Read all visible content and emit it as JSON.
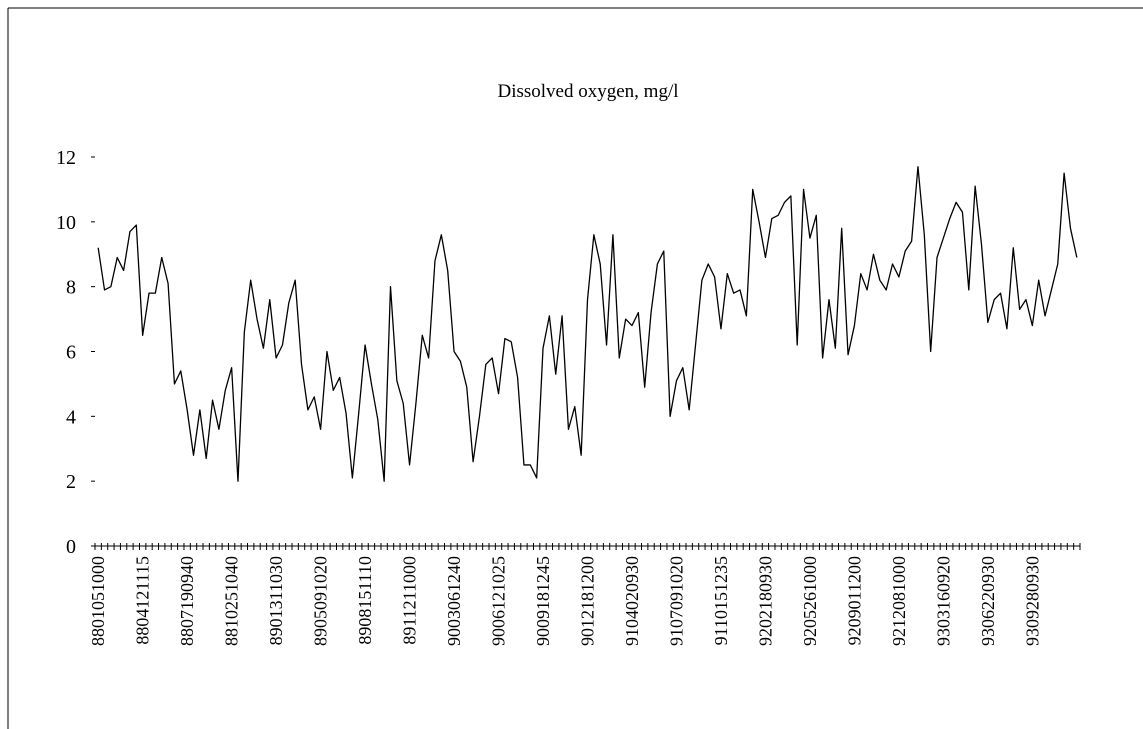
{
  "chart_data": {
    "type": "line",
    "title": "Dissolved oxygen, mg/l",
    "categories": [
      "8801051000",
      null,
      null,
      null,
      null,
      null,
      null,
      "8804121115",
      null,
      null,
      null,
      null,
      null,
      null,
      "8807190940",
      null,
      null,
      null,
      null,
      null,
      null,
      "8810251040",
      null,
      null,
      null,
      null,
      null,
      null,
      "8901311030",
      null,
      null,
      null,
      null,
      null,
      null,
      "8905091020",
      null,
      null,
      null,
      null,
      null,
      null,
      "8908151110",
      null,
      null,
      null,
      null,
      null,
      null,
      "8911211000",
      null,
      null,
      null,
      null,
      null,
      null,
      "9003061240",
      null,
      null,
      null,
      null,
      null,
      null,
      "9006121025",
      null,
      null,
      null,
      null,
      null,
      null,
      "9009181245",
      null,
      null,
      null,
      null,
      null,
      null,
      "9012181200",
      null,
      null,
      null,
      null,
      null,
      null,
      "9104020930",
      null,
      null,
      null,
      null,
      null,
      null,
      "9107091020",
      null,
      null,
      null,
      null,
      null,
      null,
      "9110151235",
      null,
      null,
      null,
      null,
      null,
      null,
      "9202180930",
      null,
      null,
      null,
      null,
      null,
      null,
      "9205261000",
      null,
      null,
      null,
      null,
      null,
      null,
      "9209011200",
      null,
      null,
      null,
      null,
      null,
      null,
      "9212081000",
      null,
      null,
      null,
      null,
      null,
      null,
      "9303160920",
      null,
      null,
      null,
      null,
      null,
      null,
      "9306220930",
      null,
      null,
      null,
      null,
      null,
      null,
      "9309280930",
      null,
      null,
      null,
      null,
      null,
      null,
      null
    ],
    "values": [
      9.2,
      7.9,
      8.0,
      8.9,
      8.5,
      9.7,
      9.9,
      6.5,
      7.8,
      7.8,
      8.9,
      8.1,
      5.0,
      5.4,
      4.2,
      2.8,
      4.2,
      2.7,
      4.5,
      3.6,
      4.8,
      5.5,
      2.0,
      6.6,
      8.2,
      7.0,
      6.1,
      7.6,
      5.8,
      6.2,
      7.5,
      8.2,
      5.6,
      4.2,
      4.6,
      3.6,
      6.0,
      4.8,
      5.2,
      4.1,
      2.1,
      4.1,
      6.2,
      5.0,
      3.9,
      2.0,
      8.0,
      5.1,
      4.4,
      2.5,
      4.4,
      6.5,
      5.8,
      8.8,
      9.6,
      8.5,
      6.0,
      5.7,
      4.9,
      2.6,
      4.0,
      5.6,
      5.8,
      4.7,
      6.4,
      6.3,
      5.2,
      2.5,
      2.5,
      2.1,
      6.1,
      7.1,
      5.3,
      7.1,
      3.6,
      4.3,
      2.8,
      7.6,
      9.6,
      8.7,
      6.2,
      9.6,
      5.8,
      7.0,
      6.8,
      7.2,
      4.9,
      7.2,
      8.7,
      9.1,
      4.0,
      5.1,
      5.5,
      4.2,
      6.2,
      8.2,
      8.7,
      8.3,
      6.7,
      8.4,
      7.8,
      7.9,
      7.1,
      11.0,
      10.0,
      8.9,
      10.1,
      10.2,
      10.6,
      10.8,
      6.2,
      11.0,
      9.5,
      10.2,
      5.8,
      7.6,
      6.1,
      9.8,
      5.9,
      6.8,
      8.4,
      7.9,
      9.0,
      8.2,
      7.9,
      8.7,
      8.3,
      9.1,
      9.4,
      11.7,
      9.6,
      6.0,
      8.9,
      9.5,
      10.1,
      10.6,
      10.3,
      7.9,
      11.1,
      9.3,
      6.9,
      7.6,
      7.8,
      6.7,
      9.2,
      7.3,
      7.6,
      6.8,
      8.2,
      7.1,
      7.9,
      8.7,
      11.5,
      9.8,
      8.9
    ],
    "color": "#000000",
    "ylim": [
      0,
      12
    ],
    "yticks": [
      0,
      2,
      4,
      6,
      8,
      10,
      12
    ],
    "grid": false
  }
}
